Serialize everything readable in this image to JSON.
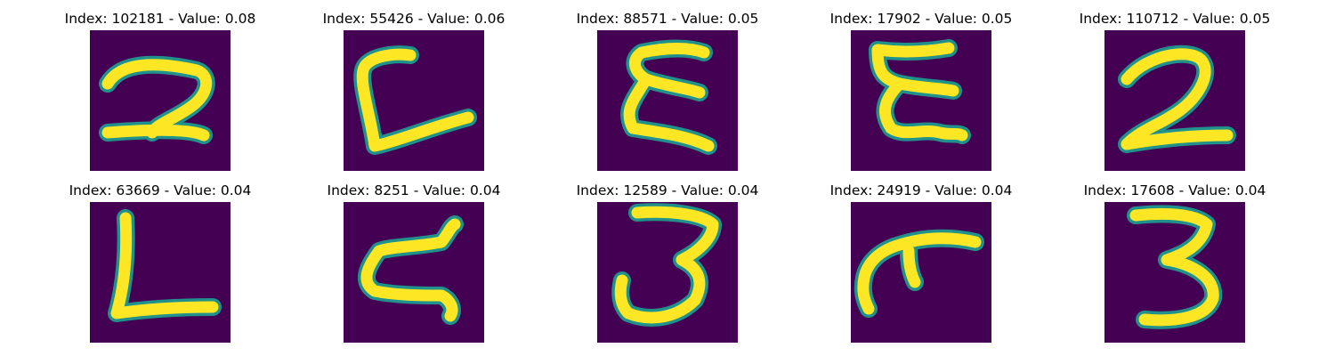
{
  "colors": {
    "background": "#440154",
    "stroke_core": "#fde725",
    "stroke_edge": "#21918c"
  },
  "colormap": "viridis",
  "panels": [
    {
      "index": "102181",
      "value": "0.08",
      "title": "Index: 102181 - Value: 0.08",
      "glyph": "2"
    },
    {
      "index": "55426",
      "value": "0.06",
      "title": "Index: 55426 - Value: 0.06",
      "glyph": "L-open"
    },
    {
      "index": "88571",
      "value": "0.05",
      "title": "Index: 88571 - Value: 0.05",
      "glyph": "epsilon"
    },
    {
      "index": "17902",
      "value": "0.05",
      "title": "Index: 17902 - Value: 0.05",
      "glyph": "epsilon-wavy"
    },
    {
      "index": "110712",
      "value": "0.05",
      "title": "Index: 110712 - Value: 0.05",
      "glyph": "2-bold"
    },
    {
      "index": "63669",
      "value": "0.04",
      "title": "Index: 63669 - Value: 0.04",
      "glyph": "L"
    },
    {
      "index": "8251",
      "value": "0.04",
      "title": "Index: 8251 - Value: 0.04",
      "glyph": "z-script"
    },
    {
      "index": "12589",
      "value": "0.04",
      "title": "Index: 12589 - Value: 0.04",
      "glyph": "3"
    },
    {
      "index": "24919",
      "value": "0.04",
      "title": "Index: 24919 - Value: 0.04",
      "glyph": "hook"
    },
    {
      "index": "17608",
      "value": "0.04",
      "title": "Index: 17608 - Value: 0.04",
      "glyph": "3-bold"
    }
  ]
}
